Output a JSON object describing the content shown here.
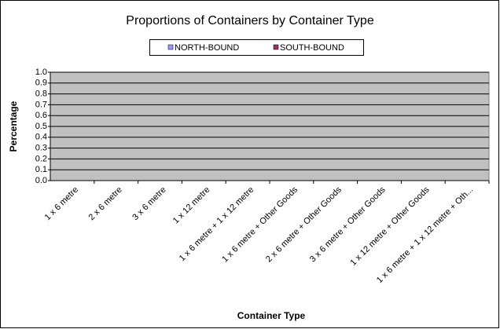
{
  "chart_data": {
    "type": "bar",
    "title": "Proportions of Containers by Container Type",
    "x_label": "Container Type",
    "y_label": "Percentage",
    "categories": [
      "1 x 6 metre",
      "2 x 6 metre",
      "3 x 6 metre",
      "1 x 12 metre",
      "1 x 6 metre + 1 x 12 metre",
      "1 x 6 metre + Other Goods",
      "2 x 6 metre + Other Goods",
      "3 x 6 metre + Other Goods",
      "1 x 12 metre + Other Goods",
      "1 x 6 metre + 1 x 12 metre + Oth..."
    ],
    "series": [
      {
        "name": "NORTH-BOUND",
        "color": "#9999ff",
        "values": [
          0,
          0,
          0,
          0,
          0,
          0,
          0,
          0,
          0,
          0
        ]
      },
      {
        "name": "SOUTH-BOUND",
        "color": "#993366",
        "values": [
          0,
          0,
          0,
          0,
          0,
          0,
          0,
          0,
          0,
          0
        ]
      }
    ],
    "ylim": [
      0,
      1
    ],
    "yticks": [
      {
        "value": 0,
        "label": "0.0"
      },
      0.1,
      0.2,
      0.3,
      0.4,
      0.5,
      0.6,
      0.7,
      0.8,
      0.9,
      {
        "value": 1,
        "label": "1.0"
      }
    ],
    "grid": true,
    "legend": "top"
  }
}
